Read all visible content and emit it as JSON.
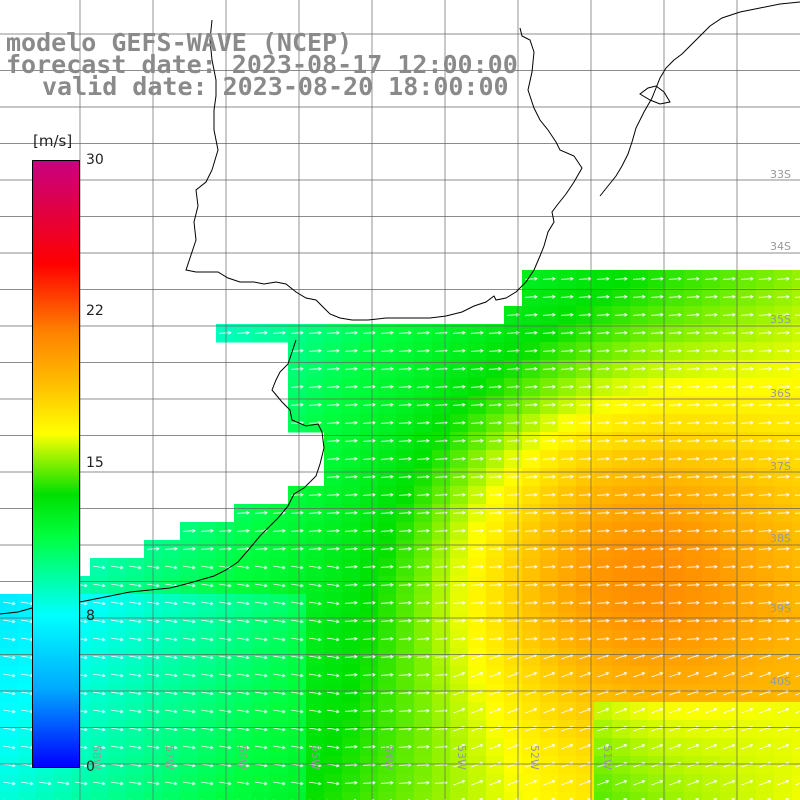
{
  "title": {
    "line1": "modelo GEFS-WAVE (NCEP)",
    "line2": "forecast date: 2023-08-17 12:00:00",
    "line3": "valid date: 2023-08-20 18:00:00"
  },
  "colorbar": {
    "unit": "[m/s]",
    "ticks": [
      "30",
      "22",
      "15",
      "8",
      "0"
    ],
    "colors": [
      "#0000ff",
      "#00aaff",
      "#00ffff",
      "#00ff40",
      "#00e000",
      "#ffff00",
      "#ffc000",
      "#ff8000",
      "#ff0000",
      "#c80080"
    ]
  },
  "map": {
    "lat_labels": [
      "33S",
      "34S",
      "35S",
      "36S",
      "37S",
      "38S",
      "39S",
      "40S"
    ],
    "lon_labels": [
      "58W",
      "57W",
      "56W",
      "55W",
      "54W",
      "53W",
      "52W",
      "51W"
    ],
    "colors": {
      "land": "#ffffff",
      "coast": "#000000",
      "grid": "#666666",
      "arrow": "#ffffff"
    }
  }
}
